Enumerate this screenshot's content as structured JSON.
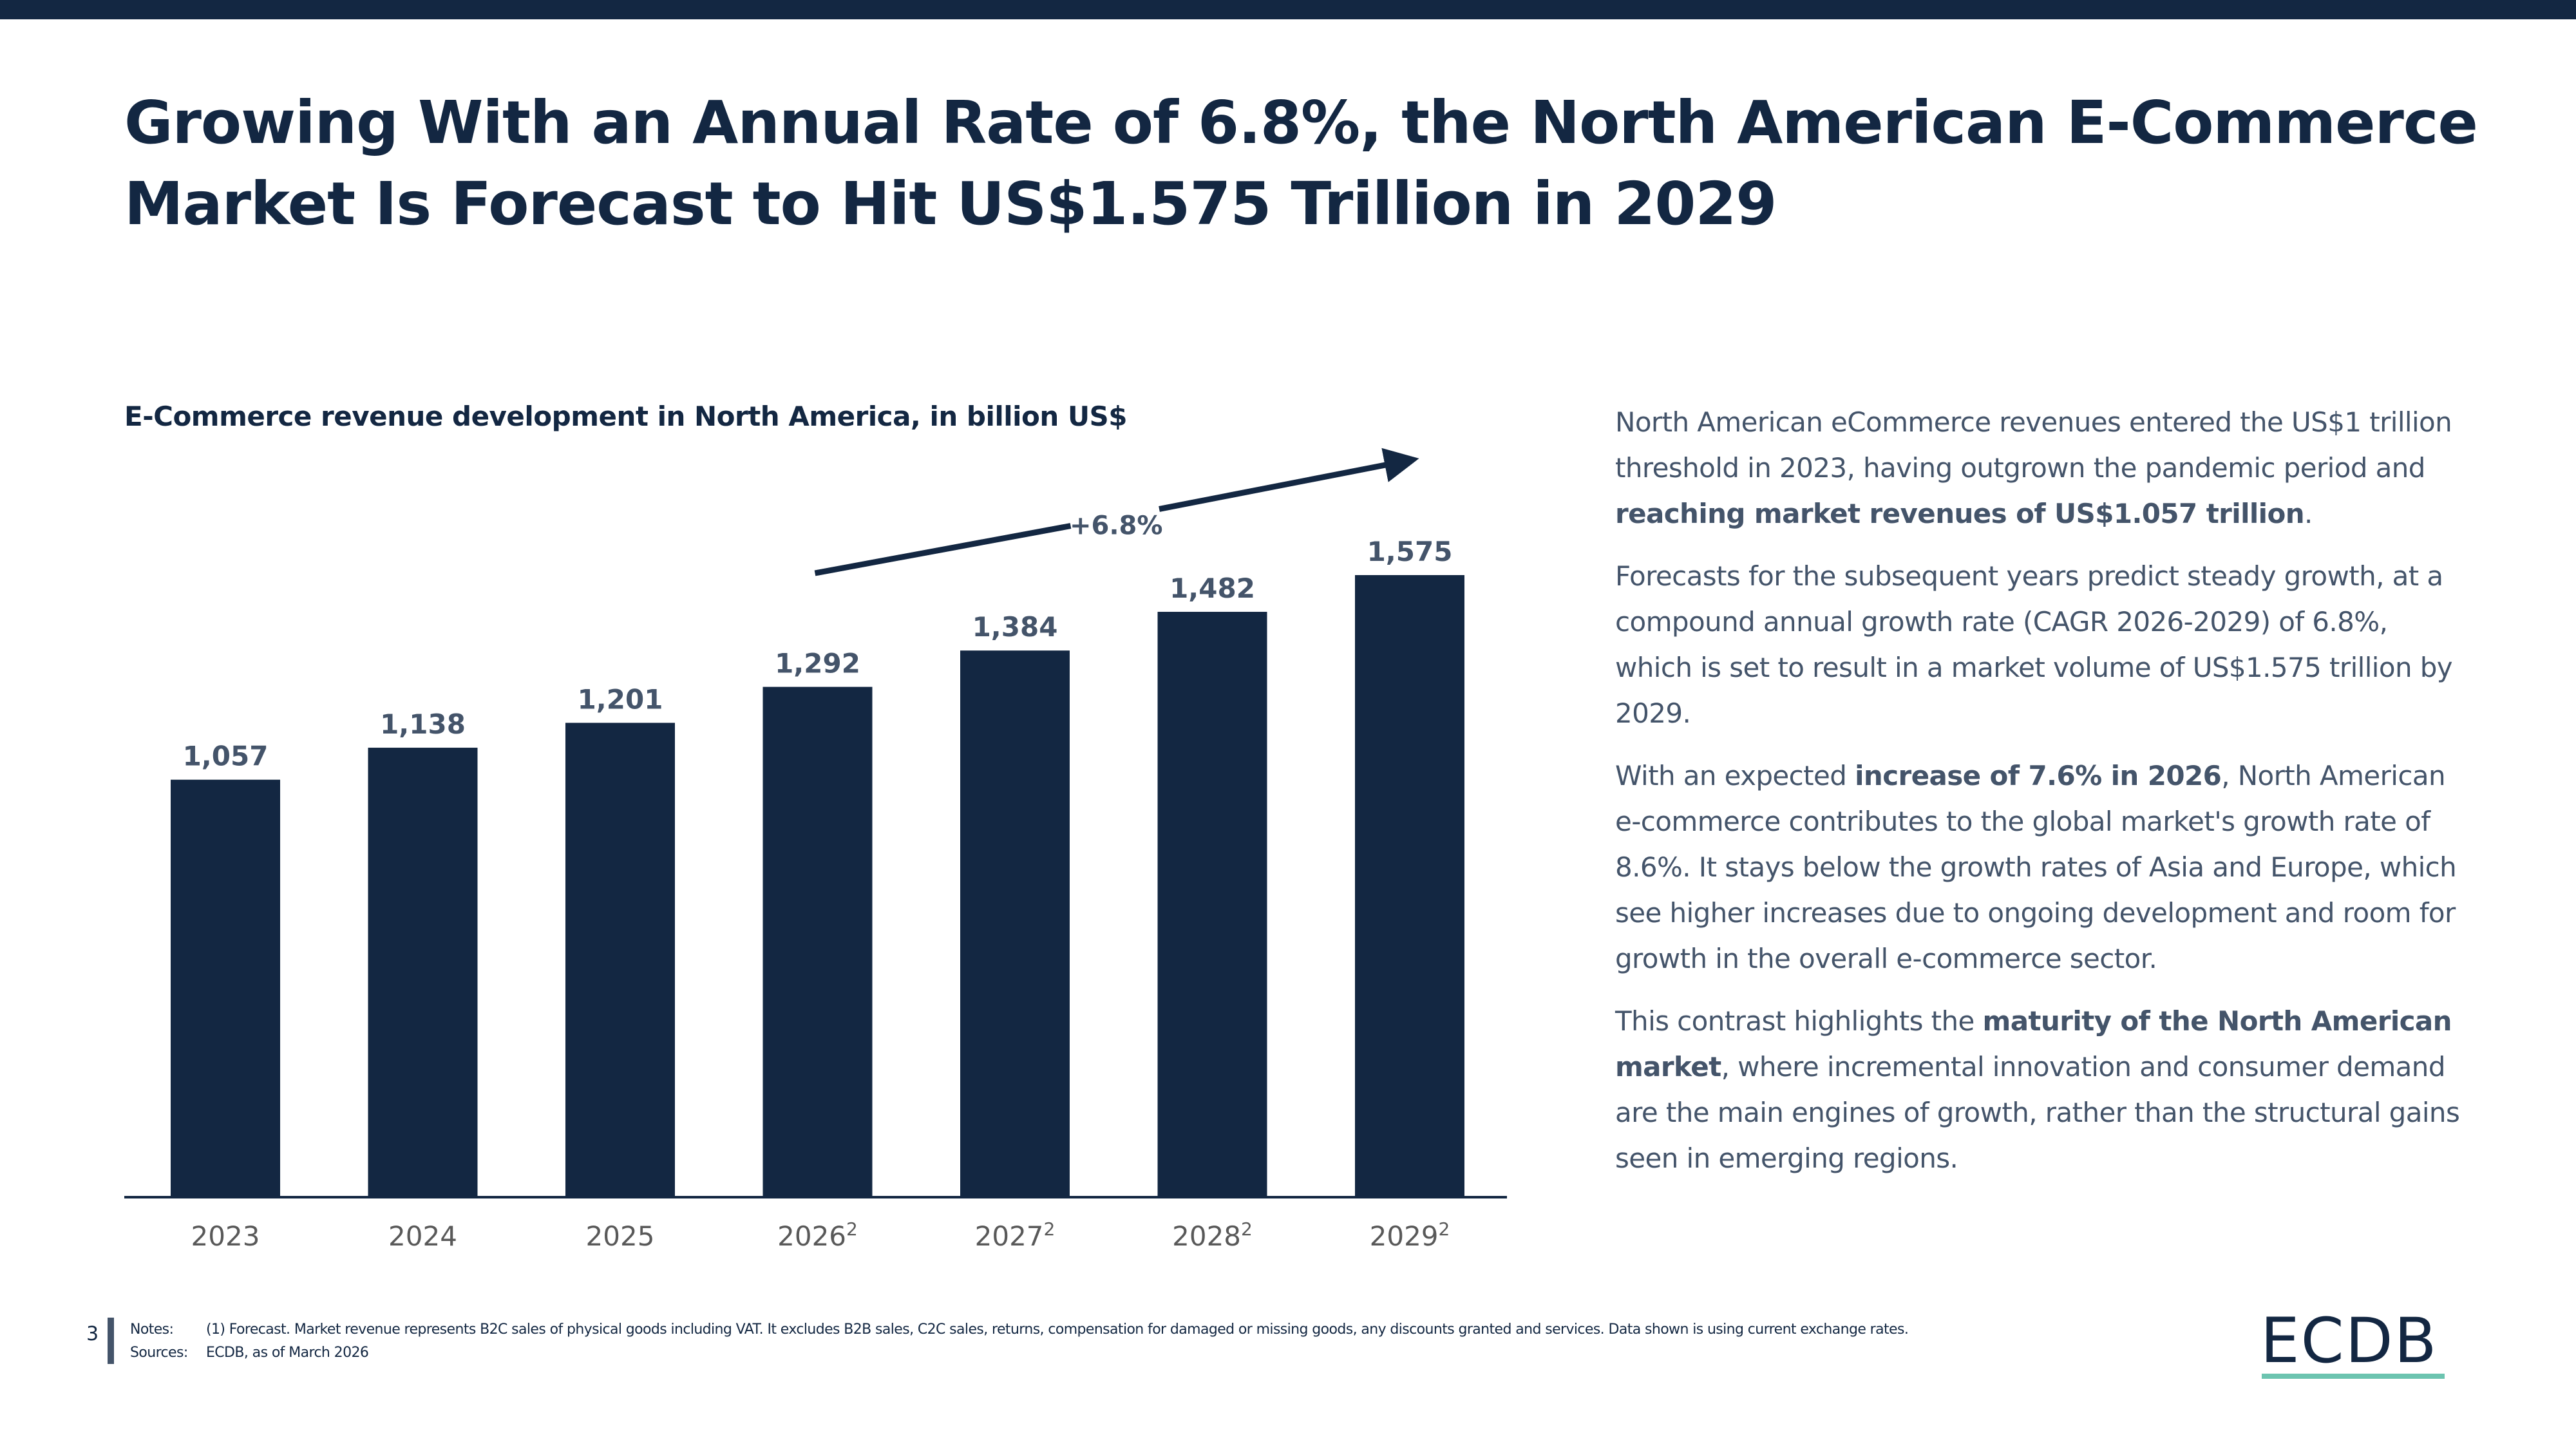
{
  "header": {
    "title_line1": "Growing With an Annual Rate of 6.8%, the North American E-Commerce",
    "title_line2": "Market Is Forecast to Hit US$1.575 Trillion in 2029"
  },
  "colors": {
    "brand_navy": "#132742",
    "label_slate": "#44546a",
    "axis_gray": "#595959",
    "logo_accent": "#6cc4b0"
  },
  "chart_data": {
    "type": "bar",
    "title": "E-Commerce revenue development in North America, in billion US$",
    "xlabel": "",
    "ylabel": "",
    "categories": [
      "2023",
      "2024",
      "2025",
      "2026",
      "2027",
      "2028",
      "2029"
    ],
    "category_superscripts": [
      "",
      "",
      "",
      "2",
      "2",
      "2",
      "2"
    ],
    "values": [
      1057,
      1138,
      1201,
      1292,
      1384,
      1482,
      1575
    ],
    "value_labels": [
      "1,057",
      "1,138",
      "1,201",
      "1,292",
      "1,384",
      "1,482",
      "1,575"
    ],
    "ylim": [
      0,
      1650
    ],
    "grid": false,
    "legend": "none",
    "annotation": {
      "label": "+6.8%",
      "type": "trend-arrow",
      "from_category": "2026",
      "to_category": "2029"
    }
  },
  "body": {
    "p1": [
      {
        "text": "North American eCommerce revenues entered the US$1 trillion threshold in 2023, having outgrown the pandemic period and ",
        "bold": false
      },
      {
        "text": "reaching market revenues of US$1.057 trillion",
        "bold": true
      },
      {
        "text": ".",
        "bold": false
      }
    ],
    "p2": [
      {
        "text": "Forecasts for the subsequent years predict steady growth, at a compound annual growth rate (CAGR 2026-2029) of 6.8%, which is set to result in a market volume of US$1.575 trillion by 2029.",
        "bold": false
      }
    ],
    "p3": [
      {
        "text": "With an expected ",
        "bold": false
      },
      {
        "text": "increase of 7.6% in 2026",
        "bold": true
      },
      {
        "text": ", North American e-commerce contributes to the global market's growth rate of 8.6%. It stays below the growth rates of Asia and Europe, which see higher increases due to ongoing development and room for growth in the overall e-commerce sector.",
        "bold": false
      }
    ],
    "p4": [
      {
        "text": "This contrast highlights the ",
        "bold": false
      },
      {
        "text": "maturity of the North American market",
        "bold": true
      },
      {
        "text": ", where incremental innovation and consumer demand are the main engines of growth, rather than the structural gains seen in emerging regions.",
        "bold": false
      }
    ]
  },
  "footer": {
    "page_number": "3",
    "notes_label": "Notes:",
    "notes_text": "(1) Forecast. Market revenue represents B2C sales of physical goods including VAT. It excludes B2B sales, C2C sales, returns, compensation for damaged or missing goods, any discounts granted and services. Data shown is using current exchange rates.",
    "sources_label": "Sources:",
    "sources_text": "ECDB, as of March 2026",
    "logo_text": "ECDB"
  }
}
